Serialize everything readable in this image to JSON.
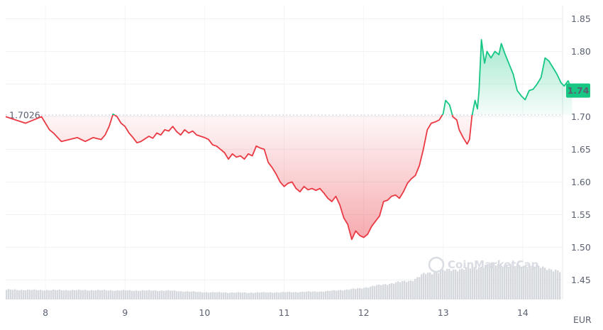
{
  "chart_data": {
    "type": "line",
    "currency": "EUR",
    "baseline": {
      "value": 1.7026,
      "label": "1.7026"
    },
    "current": {
      "value": 1.74,
      "label": "1.74"
    },
    "watermark": "CoinMarketCap",
    "ylim": [
      1.42,
      1.87
    ],
    "y_ticks": [
      {
        "value": 1.85,
        "label": "1.85"
      },
      {
        "value": 1.8,
        "label": "1.80"
      },
      {
        "value": 1.75,
        "label": "1.75"
      },
      {
        "value": 1.7,
        "label": "1.70"
      },
      {
        "value": 1.65,
        "label": "1.65"
      },
      {
        "value": 1.6,
        "label": "1.60"
      },
      {
        "value": 1.55,
        "label": "1.55"
      },
      {
        "value": 1.5,
        "label": "1.50"
      },
      {
        "value": 1.45,
        "label": "1.45"
      }
    ],
    "xlim": [
      7.5,
      14.5
    ],
    "x_ticks": [
      {
        "value": 8,
        "label": "8"
      },
      {
        "value": 9,
        "label": "9"
      },
      {
        "value": 10,
        "label": "10"
      },
      {
        "value": 11,
        "label": "11"
      },
      {
        "value": 12,
        "label": "12"
      },
      {
        "value": 13,
        "label": "13"
      },
      {
        "value": 14,
        "label": "14"
      }
    ],
    "colors": {
      "up": "#16c784",
      "down": "#ea3943",
      "baseline": "#c7ccd4",
      "volume": "#d5d8dd"
    },
    "series": [
      {
        "values": [
          [
            7.5,
            1.7
          ],
          [
            7.75,
            1.69
          ],
          [
            7.95,
            1.7
          ],
          [
            8.05,
            1.68
          ],
          [
            8.1,
            1.675
          ],
          [
            8.2,
            1.662
          ],
          [
            8.3,
            1.665
          ],
          [
            8.4,
            1.668
          ],
          [
            8.5,
            1.662
          ],
          [
            8.6,
            1.668
          ],
          [
            8.7,
            1.665
          ],
          [
            8.75,
            1.672
          ],
          [
            8.8,
            1.685
          ],
          [
            8.85,
            1.704
          ],
          [
            8.9,
            1.7
          ],
          [
            8.95,
            1.69
          ],
          [
            9.0,
            1.685
          ],
          [
            9.05,
            1.675
          ],
          [
            9.1,
            1.668
          ],
          [
            9.15,
            1.66
          ],
          [
            9.2,
            1.662
          ],
          [
            9.3,
            1.67
          ],
          [
            9.35,
            1.667
          ],
          [
            9.4,
            1.675
          ],
          [
            9.45,
            1.672
          ],
          [
            9.5,
            1.68
          ],
          [
            9.55,
            1.678
          ],
          [
            9.6,
            1.685
          ],
          [
            9.65,
            1.677
          ],
          [
            9.7,
            1.672
          ],
          [
            9.75,
            1.68
          ],
          [
            9.8,
            1.675
          ],
          [
            9.85,
            1.678
          ],
          [
            9.9,
            1.672
          ],
          [
            9.95,
            1.67
          ],
          [
            10.0,
            1.668
          ],
          [
            10.05,
            1.665
          ],
          [
            10.1,
            1.657
          ],
          [
            10.15,
            1.655
          ],
          [
            10.2,
            1.65
          ],
          [
            10.25,
            1.645
          ],
          [
            10.3,
            1.635
          ],
          [
            10.35,
            1.643
          ],
          [
            10.4,
            1.638
          ],
          [
            10.45,
            1.64
          ],
          [
            10.5,
            1.635
          ],
          [
            10.55,
            1.643
          ],
          [
            10.6,
            1.64
          ],
          [
            10.65,
            1.655
          ],
          [
            10.7,
            1.652
          ],
          [
            10.75,
            1.65
          ],
          [
            10.8,
            1.63
          ],
          [
            10.85,
            1.622
          ],
          [
            10.9,
            1.612
          ],
          [
            10.95,
            1.6
          ],
          [
            11.0,
            1.593
          ],
          [
            11.05,
            1.598
          ],
          [
            11.1,
            1.6
          ],
          [
            11.15,
            1.59
          ],
          [
            11.2,
            1.585
          ],
          [
            11.25,
            1.593
          ],
          [
            11.3,
            1.588
          ],
          [
            11.35,
            1.59
          ],
          [
            11.4,
            1.587
          ],
          [
            11.45,
            1.59
          ],
          [
            11.5,
            1.583
          ],
          [
            11.55,
            1.575
          ],
          [
            11.6,
            1.57
          ],
          [
            11.65,
            1.578
          ],
          [
            11.7,
            1.565
          ],
          [
            11.75,
            1.545
          ],
          [
            11.8,
            1.535
          ],
          [
            11.85,
            1.512
          ],
          [
            11.9,
            1.525
          ],
          [
            11.95,
            1.518
          ],
          [
            12.0,
            1.515
          ],
          [
            12.05,
            1.52
          ],
          [
            12.1,
            1.532
          ],
          [
            12.15,
            1.54
          ],
          [
            12.2,
            1.548
          ],
          [
            12.25,
            1.57
          ],
          [
            12.3,
            1.572
          ],
          [
            12.35,
            1.578
          ],
          [
            12.4,
            1.58
          ],
          [
            12.45,
            1.575
          ],
          [
            12.5,
            1.585
          ],
          [
            12.55,
            1.598
          ],
          [
            12.6,
            1.605
          ],
          [
            12.65,
            1.61
          ],
          [
            12.7,
            1.625
          ],
          [
            12.75,
            1.65
          ],
          [
            12.8,
            1.68
          ],
          [
            12.85,
            1.69
          ],
          [
            12.9,
            1.692
          ],
          [
            12.95,
            1.695
          ],
          [
            13.0,
            1.705
          ],
          [
            13.03,
            1.725
          ],
          [
            13.08,
            1.718
          ],
          [
            13.12,
            1.7
          ],
          [
            13.17,
            1.695
          ],
          [
            13.2,
            1.68
          ],
          [
            13.25,
            1.668
          ],
          [
            13.3,
            1.658
          ],
          [
            13.33,
            1.665
          ],
          [
            13.36,
            1.7
          ],
          [
            13.4,
            1.725
          ],
          [
            13.43,
            1.712
          ],
          [
            13.45,
            1.74
          ],
          [
            13.48,
            1.818
          ],
          [
            13.52,
            1.782
          ],
          [
            13.55,
            1.8
          ],
          [
            13.6,
            1.79
          ],
          [
            13.65,
            1.8
          ],
          [
            13.7,
            1.795
          ],
          [
            13.73,
            1.812
          ],
          [
            13.78,
            1.795
          ],
          [
            13.83,
            1.78
          ],
          [
            13.88,
            1.765
          ],
          [
            13.93,
            1.74
          ],
          [
            13.98,
            1.732
          ],
          [
            14.03,
            1.726
          ],
          [
            14.08,
            1.74
          ],
          [
            14.13,
            1.742
          ],
          [
            14.18,
            1.75
          ],
          [
            14.23,
            1.76
          ],
          [
            14.28,
            1.79
          ],
          [
            14.33,
            1.785
          ],
          [
            14.38,
            1.775
          ],
          [
            14.43,
            1.765
          ],
          [
            14.48,
            1.752
          ],
          [
            14.52,
            1.747
          ],
          [
            14.57,
            1.755
          ],
          [
            14.62,
            1.74
          ]
        ]
      }
    ],
    "volume_levels": [
      [
        7.5,
        0.23
      ],
      [
        8.0,
        0.22
      ],
      [
        8.5,
        0.22
      ],
      [
        9.0,
        0.21
      ],
      [
        9.5,
        0.21
      ],
      [
        10.0,
        0.17
      ],
      [
        10.5,
        0.16
      ],
      [
        11.0,
        0.17
      ],
      [
        11.5,
        0.19
      ],
      [
        11.9,
        0.25
      ],
      [
        12.3,
        0.37
      ],
      [
        12.6,
        0.45
      ],
      [
        12.75,
        0.6
      ],
      [
        13.0,
        0.68
      ],
      [
        13.4,
        0.75
      ],
      [
        13.6,
        0.83
      ],
      [
        13.8,
        0.8
      ],
      [
        14.1,
        0.78
      ],
      [
        14.3,
        0.74
      ],
      [
        14.45,
        0.65
      ],
      [
        14.6,
        0.6
      ]
    ]
  }
}
